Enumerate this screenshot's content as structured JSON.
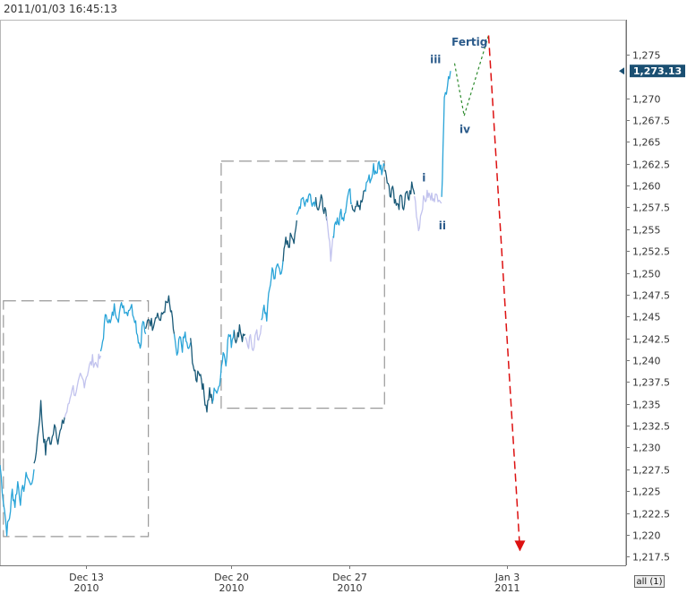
{
  "header": {
    "timestamp": "2011/01/03 16:45:13"
  },
  "controls": {
    "range_button": "all (1)"
  },
  "colors": {
    "wave_dark": "#1a5a78",
    "wave_mid": "#29a4d8",
    "wave_light": "#c2c3ee",
    "green_projection": "#2e8b2e",
    "red_projection": "#dd1111",
    "last_price_tag": "#1a4f72",
    "box_dashes": "#999999"
  },
  "chart_data": {
    "type": "line",
    "ylim": [
      1216.5,
      1279
    ],
    "y_ticks": [
      1217.5,
      1220,
      1222.5,
      1225,
      1227.5,
      1230,
      1232.5,
      1235,
      1237.5,
      1240,
      1242.5,
      1245,
      1247.5,
      1250,
      1252.5,
      1255,
      1257.5,
      1260,
      1262.5,
      1265,
      1267.5,
      1270,
      1275
    ],
    "y_tick_labels": [
      "1,217.5",
      "1,220",
      "1,222.5",
      "1,225",
      "1,227.5",
      "1,230",
      "1,232.5",
      "1,235",
      "1,237.5",
      "1,240",
      "1,242.5",
      "1,245",
      "1,247.5",
      "1,250",
      "1,252.5",
      "1,255",
      "1,257.5",
      "1,260",
      "1,262.5",
      "1,265",
      "1,267.5",
      "1,270",
      "1,275"
    ],
    "x_ticks": [
      {
        "label": "Dec 13",
        "year": "2010",
        "t": 6.6
      },
      {
        "label": "Dec 20",
        "year": "2010",
        "t": 28.0
      },
      {
        "label": "Dec 27",
        "year": "2010",
        "t": 45.3
      },
      {
        "label": "Jan 3",
        "year": "2011",
        "t": 68.5
      }
    ],
    "xlim": [
      -6,
      86
    ],
    "series": [
      {
        "color": "wave_mid",
        "points": [
          [
            -6,
            1228
          ],
          [
            -5.5,
            1224
          ],
          [
            -5,
            1220.5
          ],
          [
            -4.6,
            1222
          ],
          [
            -4.2,
            1225
          ],
          [
            -3.8,
            1223.5
          ],
          [
            -3.4,
            1226
          ],
          [
            -3,
            1224
          ],
          [
            -2.5,
            1225.5
          ],
          [
            -2,
            1227
          ],
          [
            -1.5,
            1225.5
          ],
          [
            -1,
            1227.5
          ]
        ]
      },
      {
        "color": "wave_dark",
        "points": [
          [
            -1,
            1227.5
          ],
          [
            -0.5,
            1231
          ],
          [
            0,
            1235
          ],
          [
            0.3,
            1232
          ],
          [
            0.7,
            1229.5
          ],
          [
            1.1,
            1231.5
          ],
          [
            1.5,
            1230
          ],
          [
            2,
            1233
          ],
          [
            2.5,
            1231
          ],
          [
            3,
            1232
          ],
          [
            3.5,
            1233.5
          ]
        ]
      },
      {
        "color": "wave_light",
        "points": [
          [
            3.5,
            1233.5
          ],
          [
            4,
            1234.5
          ],
          [
            4.6,
            1237
          ],
          [
            5.2,
            1236
          ],
          [
            5.8,
            1238
          ],
          [
            6.4,
            1237.5
          ],
          [
            7,
            1239
          ],
          [
            7.6,
            1240
          ],
          [
            8.2,
            1239.5
          ],
          [
            8.8,
            1240.5
          ]
        ]
      },
      {
        "color": "wave_mid",
        "points": [
          [
            8.8,
            1240.5
          ],
          [
            9.2,
            1243
          ],
          [
            9.6,
            1245.5
          ],
          [
            10.2,
            1244
          ],
          [
            10.8,
            1246
          ],
          [
            11.4,
            1245
          ],
          [
            12,
            1246.5
          ],
          [
            12.6,
            1245.5
          ],
          [
            13.2,
            1246.3
          ],
          [
            13.8,
            1245
          ],
          [
            14.2,
            1243
          ],
          [
            14.6,
            1241.5
          ],
          [
            15,
            1244.5
          ],
          [
            15.4,
            1243
          ]
        ]
      },
      {
        "color": "wave_dark",
        "points": [
          [
            15.4,
            1243
          ],
          [
            15.8,
            1245
          ],
          [
            16.4,
            1244
          ],
          [
            17,
            1245.5
          ],
          [
            17.6,
            1244.5
          ],
          [
            18.2,
            1246
          ],
          [
            18.8,
            1246.8
          ],
          [
            19.2,
            1245
          ],
          [
            19.6,
            1243
          ]
        ]
      },
      {
        "color": "wave_mid",
        "points": [
          [
            19.6,
            1243
          ],
          [
            20,
            1240
          ],
          [
            20.4,
            1242.5
          ],
          [
            20.8,
            1241.5
          ],
          [
            21.2,
            1243
          ],
          [
            21.6,
            1241
          ],
          [
            22,
            1242
          ]
        ]
      },
      {
        "color": "wave_dark",
        "points": [
          [
            22,
            1242
          ],
          [
            22.4,
            1239.5
          ],
          [
            22.8,
            1237.5
          ],
          [
            23.2,
            1239
          ],
          [
            23.6,
            1238
          ],
          [
            24,
            1236
          ],
          [
            24.4,
            1234.5
          ],
          [
            24.8,
            1236.5
          ],
          [
            25.2,
            1235
          ]
        ]
      },
      {
        "color": "wave_mid",
        "points": [
          [
            25.2,
            1235
          ],
          [
            25.6,
            1237
          ],
          [
            26,
            1236
          ],
          [
            26.4,
            1238.5
          ],
          [
            26.8,
            1241
          ],
          [
            27.2,
            1240
          ],
          [
            27.6,
            1243
          ],
          [
            28,
            1242
          ],
          [
            28.4,
            1243.5
          ]
        ]
      },
      {
        "color": "wave_dark",
        "points": [
          [
            28.4,
            1243.5
          ],
          [
            28.8,
            1242
          ],
          [
            29.2,
            1244
          ],
          [
            29.6,
            1242.5
          ],
          [
            30,
            1243
          ]
        ]
      },
      {
        "color": "wave_light",
        "points": [
          [
            30,
            1243
          ],
          [
            30.4,
            1241
          ],
          [
            30.8,
            1242.5
          ],
          [
            31.2,
            1241.5
          ],
          [
            31.6,
            1243
          ],
          [
            32,
            1242.5
          ],
          [
            32.4,
            1244
          ]
        ]
      },
      {
        "color": "wave_mid",
        "points": [
          [
            32.4,
            1244
          ],
          [
            32.8,
            1246
          ],
          [
            33.2,
            1245
          ],
          [
            33.6,
            1248
          ],
          [
            34,
            1250.5
          ],
          [
            34.4,
            1249.5
          ],
          [
            34.8,
            1251
          ],
          [
            35.2,
            1250
          ],
          [
            35.6,
            1251.5
          ]
        ]
      },
      {
        "color": "wave_dark",
        "points": [
          [
            35.6,
            1251.5
          ],
          [
            36,
            1253.5
          ],
          [
            36.4,
            1253
          ],
          [
            36.8,
            1254.5
          ],
          [
            37.2,
            1254
          ],
          [
            37.6,
            1256
          ]
        ]
      },
      {
        "color": "wave_mid",
        "points": [
          [
            37.6,
            1256
          ],
          [
            38,
            1257.5
          ],
          [
            38.4,
            1259
          ],
          [
            38.8,
            1258
          ],
          [
            39.2,
            1258.5
          ],
          [
            39.6,
            1259
          ],
          [
            40,
            1258
          ],
          [
            40.4,
            1258.5
          ]
        ]
      },
      {
        "color": "wave_dark",
        "points": [
          [
            40.4,
            1258.5
          ],
          [
            40.8,
            1257.5
          ],
          [
            41.2,
            1258.3
          ],
          [
            41.6,
            1257.5
          ],
          [
            42,
            1256
          ]
        ]
      },
      {
        "color": "wave_light",
        "points": [
          [
            42,
            1256
          ],
          [
            42.3,
            1254
          ],
          [
            42.6,
            1252
          ],
          [
            42.9,
            1254
          ]
        ]
      },
      {
        "color": "wave_mid",
        "points": [
          [
            42.9,
            1254
          ],
          [
            43.3,
            1256
          ],
          [
            43.7,
            1255.5
          ],
          [
            44.1,
            1257
          ],
          [
            44.5,
            1256.5
          ],
          [
            44.9,
            1258
          ],
          [
            45.3,
            1259.5
          ],
          [
            45.7,
            1258
          ]
        ]
      },
      {
        "color": "wave_dark",
        "points": [
          [
            45.7,
            1258
          ],
          [
            46.1,
            1257.5
          ],
          [
            46.5,
            1258.5
          ],
          [
            46.9,
            1257.5
          ],
          [
            47.3,
            1258.5
          ],
          [
            47.7,
            1259.5
          ]
        ]
      },
      {
        "color": "wave_mid",
        "points": [
          [
            47.7,
            1259.5
          ],
          [
            48.1,
            1261
          ],
          [
            48.5,
            1260.5
          ],
          [
            48.9,
            1262
          ],
          [
            49.3,
            1261.5
          ],
          [
            49.7,
            1262.5
          ],
          [
            50.1,
            1261.8
          ],
          [
            50.5,
            1262.3
          ]
        ]
      },
      {
        "color": "wave_dark",
        "points": [
          [
            50.5,
            1262.3
          ],
          [
            50.9,
            1261
          ],
          [
            51.3,
            1259
          ],
          [
            51.7,
            1260
          ],
          [
            52.1,
            1258
          ],
          [
            52.5,
            1257.5
          ],
          [
            52.9,
            1258.5
          ],
          [
            53.3,
            1257.5
          ],
          [
            53.7,
            1259
          ],
          [
            54.1,
            1258.5
          ],
          [
            54.5,
            1260
          ],
          [
            54.9,
            1259
          ]
        ]
      },
      {
        "color": "wave_light",
        "points": [
          [
            54.9,
            1259
          ],
          [
            55.2,
            1257
          ],
          [
            55.5,
            1255
          ],
          [
            55.8,
            1256.5
          ],
          [
            56.1,
            1258
          ],
          [
            56.5,
            1258.5
          ],
          [
            56.9,
            1259
          ],
          [
            57.3,
            1258.5
          ],
          [
            57.7,
            1259
          ],
          [
            58.1,
            1258.5
          ],
          [
            58.5,
            1259
          ],
          [
            58.9,
            1258
          ]
        ]
      },
      {
        "color": "wave_mid",
        "points": [
          [
            58.9,
            1258
          ],
          [
            59.1,
            1265
          ],
          [
            59.3,
            1270
          ],
          [
            59.6,
            1271
          ],
          [
            59.9,
            1272.5
          ],
          [
            60.2,
            1273.13
          ]
        ]
      }
    ],
    "projections": [
      {
        "color": "green_projection",
        "points": [
          [
            60.8,
            1274
          ],
          [
            62.2,
            1268
          ]
        ]
      },
      {
        "color": "green_projection",
        "points": [
          [
            62.2,
            1268
          ],
          [
            65.8,
            1277.2
          ]
        ]
      },
      {
        "color": "red_projection",
        "points": [
          [
            65.8,
            1277.2
          ],
          [
            70.4,
            1218.2
          ]
        ]
      }
    ],
    "boxes": [
      {
        "t0": -5.5,
        "t1": 15.8,
        "y0": 1219.8,
        "y1": 1246.8
      },
      {
        "t0": 26.5,
        "t1": 50.5,
        "y0": 1234.5,
        "y1": 1262.8
      }
    ],
    "wave_labels": [
      {
        "text": "iii",
        "t": 58.0,
        "y": 1274
      },
      {
        "text": "Fertig",
        "t": 63.0,
        "y": 1276
      },
      {
        "text": "iv",
        "t": 62.3,
        "y": 1266
      },
      {
        "text": "i",
        "t": 56.3,
        "y": 1260.5
      },
      {
        "text": "ii",
        "t": 59.0,
        "y": 1255
      }
    ],
    "last_price": {
      "value": 1273.13,
      "label": "1,273.13"
    }
  }
}
